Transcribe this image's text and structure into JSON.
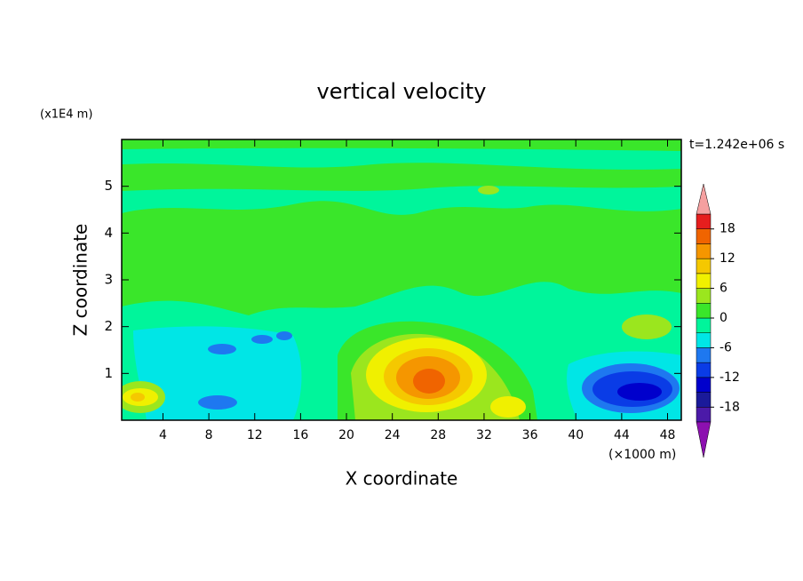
{
  "chart_data": {
    "type": "contour",
    "title": "vertical velocity",
    "xlabel": "X coordinate",
    "ylabel": "Z coordinate",
    "x_unit_label": "(×1000 m)",
    "y_unit_label": "(x1E4 m)",
    "time_label": "t=1.242e+06 s",
    "xlim": [
      0.4,
      49.2
    ],
    "xticks": [
      4,
      8,
      12,
      16,
      20,
      24,
      28,
      32,
      36,
      40,
      44,
      48
    ],
    "ylim": [
      0,
      6
    ],
    "yticks": [
      1,
      2,
      3,
      4,
      5
    ],
    "colorbar": {
      "levels": [
        -21,
        -18,
        -15,
        -12,
        -9,
        -6,
        -3,
        0,
        3,
        6,
        9,
        12,
        15,
        18,
        21
      ],
      "colors": [
        "#4b1aa8",
        "#1a1a9a",
        "#0000cc",
        "#0a3ce6",
        "#1e78f0",
        "#00e6e6",
        "#00f59b",
        "#3ae62a",
        "#9be61e",
        "#f0f000",
        "#f5c800",
        "#f59600",
        "#f06400",
        "#e61e1e"
      ],
      "under_color": "#8c10b0",
      "over_color": "#f5a0a0",
      "ticks": [
        -18,
        -12,
        -6,
        0,
        6,
        12,
        18
      ]
    }
  }
}
